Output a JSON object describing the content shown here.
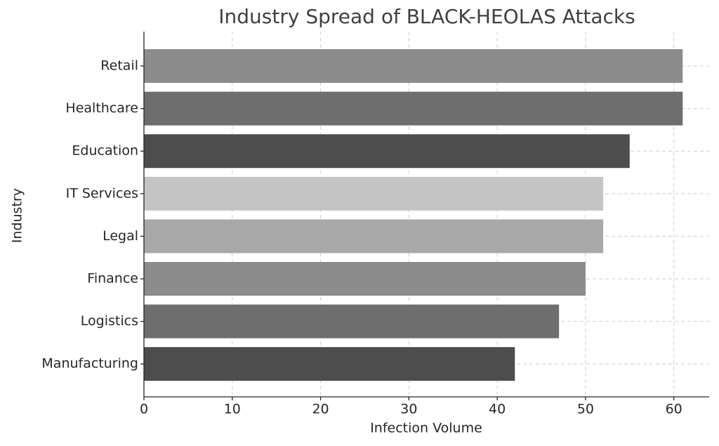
{
  "chart_data": {
    "type": "bar",
    "orientation": "horizontal",
    "title": "Industry Spread of BLACK-HEOLAS Attacks",
    "x_label": "Infection Volume",
    "y_label": "Industry",
    "categories": [
      "Retail",
      "Healthcare",
      "Education",
      "IT Services",
      "Legal",
      "Finance",
      "Logistics",
      "Manufacturing"
    ],
    "values": [
      61,
      61,
      55,
      52,
      52,
      50,
      47,
      42
    ],
    "colors": [
      "#8c8c8c",
      "#6e6e6e",
      "#4d4d4d",
      "#c4c4c4",
      "#a8a8a8",
      "#8c8c8c",
      "#6e6e6e",
      "#4d4d4d"
    ],
    "xlim": [
      0,
      64
    ],
    "xticks": [
      0,
      10,
      20,
      30,
      40,
      50,
      60
    ],
    "grid": true
  }
}
